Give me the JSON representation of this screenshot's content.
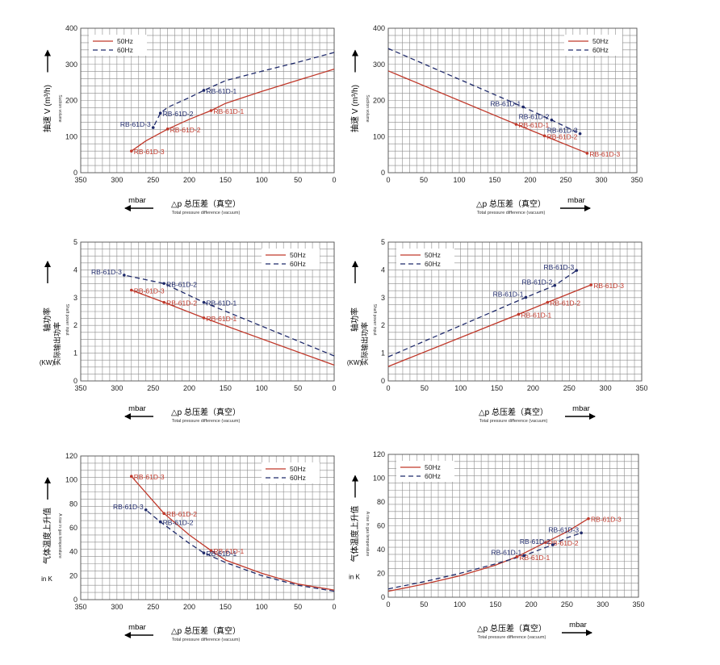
{
  "common": {
    "xlabel_zh": "△p  总压差（真空）",
    "xlabel_en": "Total pressure difference (vacuum)",
    "unit": "mbar",
    "legend_50": "50Hz",
    "legend_60": "60Hz",
    "colors": {
      "hz50": "#c0392b",
      "hz60": "#1f2a6b",
      "grid": "#8c8c8c"
    }
  },
  "chart_data": [
    {
      "type": "line",
      "xreversed": true,
      "xlim": [
        0,
        350
      ],
      "ylim": [
        0,
        400
      ],
      "xticks": [
        350,
        300,
        250,
        200,
        150,
        100,
        50,
        0
      ],
      "yticks": [
        0,
        100,
        200,
        300,
        400
      ],
      "ylabel_zh": "抽速 V (m³/h)",
      "ylabel_en": "Suction volume",
      "legend_pos": "top-left",
      "series": [
        {
          "name": "50Hz",
          "x": [
            0,
            50,
            100,
            150,
            170,
            200,
            230,
            260,
            280
          ],
          "y": [
            287,
            256,
            225,
            192,
            172,
            148,
            121,
            88,
            60
          ]
        },
        {
          "name": "60Hz",
          "x": [
            0,
            50,
            100,
            150,
            180,
            200,
            230,
            240,
            250
          ],
          "y": [
            333,
            306,
            281,
            255,
            228,
            208,
            181,
            165,
            125
          ]
        }
      ],
      "points": [
        {
          "label": "RB-61D-1",
          "x": 170,
          "y": 172,
          "s": 0
        },
        {
          "label": "RB-61D-2",
          "x": 230,
          "y": 121,
          "s": 0
        },
        {
          "label": "RB-61D-3",
          "x": 280,
          "y": 60,
          "s": 0
        },
        {
          "label": "RB-61D-1",
          "x": 180,
          "y": 228,
          "s": 1
        },
        {
          "label": "RB-61D-2",
          "x": 240,
          "y": 165,
          "s": 1
        },
        {
          "label": "RB-61D-3",
          "x": 250,
          "y": 125,
          "s": 1
        }
      ]
    },
    {
      "type": "line",
      "xreversed": false,
      "xlim": [
        0,
        350
      ],
      "ylim": [
        0,
        400
      ],
      "xticks": [
        0,
        50,
        100,
        150,
        200,
        250,
        300,
        350
      ],
      "yticks": [
        0,
        100,
        200,
        300,
        400
      ],
      "ylabel_zh": "抽速 V (m³/h)",
      "ylabel_en": "Suction volume",
      "legend_pos": "top-right",
      "series": [
        {
          "name": "50Hz",
          "x": [
            0,
            180,
            220,
            280
          ],
          "y": [
            282,
            134,
            102,
            54
          ]
        },
        {
          "name": "60Hz",
          "x": [
            0,
            190,
            230,
            270
          ],
          "y": [
            344,
            182,
            146,
            108
          ]
        }
      ],
      "points": [
        {
          "label": "RB-61D-1",
          "x": 180,
          "y": 134,
          "s": 0
        },
        {
          "label": "RB-61D-2",
          "x": 220,
          "y": 102,
          "s": 0
        },
        {
          "label": "RB-61D-3",
          "x": 280,
          "y": 54,
          "s": 0
        },
        {
          "label": "RB-61D-1",
          "x": 190,
          "y": 182,
          "s": 1
        },
        {
          "label": "RB-61D-2",
          "x": 230,
          "y": 146,
          "s": 1
        },
        {
          "label": "RB-61D-3",
          "x": 270,
          "y": 108,
          "s": 1
        }
      ]
    },
    {
      "type": "line",
      "xreversed": true,
      "xlim": [
        0,
        350
      ],
      "ylim": [
        0,
        5
      ],
      "xticks": [
        350,
        300,
        250,
        200,
        150,
        100,
        50,
        0
      ],
      "yticks": [
        0,
        1,
        2,
        3,
        4,
        5
      ],
      "ylabel_zh": "轴功率",
      "ylabel_zh2": "实际输出功率",
      "ylabel_en": "Shaft power input",
      "yunit": "(KW)",
      "legend_pos": "top-right",
      "series": [
        {
          "name": "50Hz",
          "x": [
            0,
            180,
            235,
            280
          ],
          "y": [
            0.57,
            2.27,
            2.83,
            3.27
          ]
        },
        {
          "name": "60Hz",
          "x": [
            0,
            180,
            235,
            290
          ],
          "y": [
            0.9,
            2.83,
            3.51,
            3.81
          ]
        }
      ],
      "points": [
        {
          "label": "RB-61D-1",
          "x": 180,
          "y": 2.27,
          "s": 0
        },
        {
          "label": "RB-61D-2",
          "x": 235,
          "y": 2.83,
          "s": 0
        },
        {
          "label": "RB-61D-3",
          "x": 280,
          "y": 3.27,
          "s": 0
        },
        {
          "label": "RB-61D-1",
          "x": 180,
          "y": 2.83,
          "s": 1
        },
        {
          "label": "RB-61D-2",
          "x": 235,
          "y": 3.51,
          "s": 1
        },
        {
          "label": "RB-61D-3",
          "x": 290,
          "y": 3.81,
          "s": 1
        }
      ]
    },
    {
      "type": "line",
      "xreversed": false,
      "xlim": [
        0,
        350
      ],
      "ylim": [
        0,
        5
      ],
      "xticks": [
        0,
        50,
        100,
        150,
        200,
        250,
        300,
        350
      ],
      "yticks": [
        0,
        1,
        2,
        3,
        4,
        5
      ],
      "ylabel_zh": "轴功率",
      "ylabel_zh2": "实际输出功率",
      "ylabel_en": "Shaft power input",
      "yunit": "(KW)",
      "legend_pos": "top-left",
      "series": [
        {
          "name": "50Hz",
          "x": [
            0,
            180,
            220,
            280
          ],
          "y": [
            0.52,
            2.4,
            2.83,
            3.46
          ]
        },
        {
          "name": "60Hz",
          "x": [
            0,
            190,
            230,
            260
          ],
          "y": [
            0.87,
            3.01,
            3.44,
            3.98
          ]
        }
      ],
      "points": [
        {
          "label": "RB-61D-1",
          "x": 180,
          "y": 2.4,
          "s": 0
        },
        {
          "label": "RB-61D-2",
          "x": 220,
          "y": 2.83,
          "s": 0
        },
        {
          "label": "RB-61D-3",
          "x": 280,
          "y": 3.46,
          "s": 0
        },
        {
          "label": "RB-61D-1",
          "x": 190,
          "y": 3.01,
          "s": 1
        },
        {
          "label": "RB-61D-2",
          "x": 230,
          "y": 3.44,
          "s": 1
        },
        {
          "label": "RB-61D-3",
          "x": 260,
          "y": 3.98,
          "s": 1
        }
      ]
    },
    {
      "type": "line",
      "xreversed": true,
      "xlim": [
        0,
        350
      ],
      "ylim": [
        0,
        120
      ],
      "xticks": [
        350,
        300,
        250,
        200,
        150,
        100,
        50,
        0
      ],
      "yticks": [
        0,
        20,
        40,
        60,
        80,
        100,
        120
      ],
      "ylabel_zh": "气体温度上升值",
      "ylabel_en": "A rise in gas temperature",
      "yunit": "in K",
      "legend_pos": "top-right",
      "series": [
        {
          "name": "50Hz",
          "x": [
            0,
            50,
            100,
            150,
            170,
            200,
            235,
            280
          ],
          "y": [
            8,
            13,
            22,
            33,
            41,
            54,
            72,
            103
          ]
        },
        {
          "name": "60Hz",
          "x": [
            0,
            50,
            100,
            150,
            180,
            200,
            240,
            260
          ],
          "y": [
            7,
            12,
            20,
            31,
            39,
            47,
            65,
            75
          ]
        }
      ],
      "points": [
        {
          "label": "RB-61D-1",
          "x": 170,
          "y": 41,
          "s": 0
        },
        {
          "label": "RB-61D-2",
          "x": 235,
          "y": 72,
          "s": 0
        },
        {
          "label": "RB-61D-3",
          "x": 280,
          "y": 103,
          "s": 0
        },
        {
          "label": "RB-61D-1",
          "x": 180,
          "y": 39,
          "s": 1
        },
        {
          "label": "RB-61D-2",
          "x": 240,
          "y": 65,
          "s": 1
        },
        {
          "label": "RB-61D-3",
          "x": 260,
          "y": 75,
          "s": 1
        }
      ]
    },
    {
      "type": "line",
      "xreversed": false,
      "xlim": [
        0,
        350
      ],
      "ylim": [
        0,
        120
      ],
      "xticks": [
        0,
        50,
        100,
        150,
        200,
        250,
        300,
        350
      ],
      "yticks": [
        0,
        20,
        40,
        60,
        80,
        100,
        120
      ],
      "ylabel_zh": "气体温度上升值",
      "ylabel_en": "A rise in gas temperature",
      "yunit": "in K",
      "legend_pos": "top-left",
      "series": [
        {
          "name": "50Hz",
          "x": [
            0,
            50,
            100,
            150,
            180,
            220,
            250,
            280
          ],
          "y": [
            5,
            11,
            18,
            27,
            34,
            46,
            55,
            66
          ]
        },
        {
          "name": "60Hz",
          "x": [
            0,
            50,
            100,
            150,
            190,
            230,
            250,
            270
          ],
          "y": [
            7,
            13,
            20,
            28,
            35,
            44,
            50,
            54
          ]
        }
      ],
      "points": [
        {
          "label": "RB-61D-1",
          "x": 180,
          "y": 34,
          "s": 0
        },
        {
          "label": "RB-61D-2",
          "x": 220,
          "y": 46,
          "s": 0
        },
        {
          "label": "RB-61D-3",
          "x": 280,
          "y": 66,
          "s": 0
        },
        {
          "label": "RB-61D-1",
          "x": 190,
          "y": 35,
          "s": 1
        },
        {
          "label": "RB-61D-2",
          "x": 230,
          "y": 44,
          "s": 1
        },
        {
          "label": "RB-61D-3",
          "x": 270,
          "y": 54,
          "s": 1
        }
      ]
    }
  ]
}
